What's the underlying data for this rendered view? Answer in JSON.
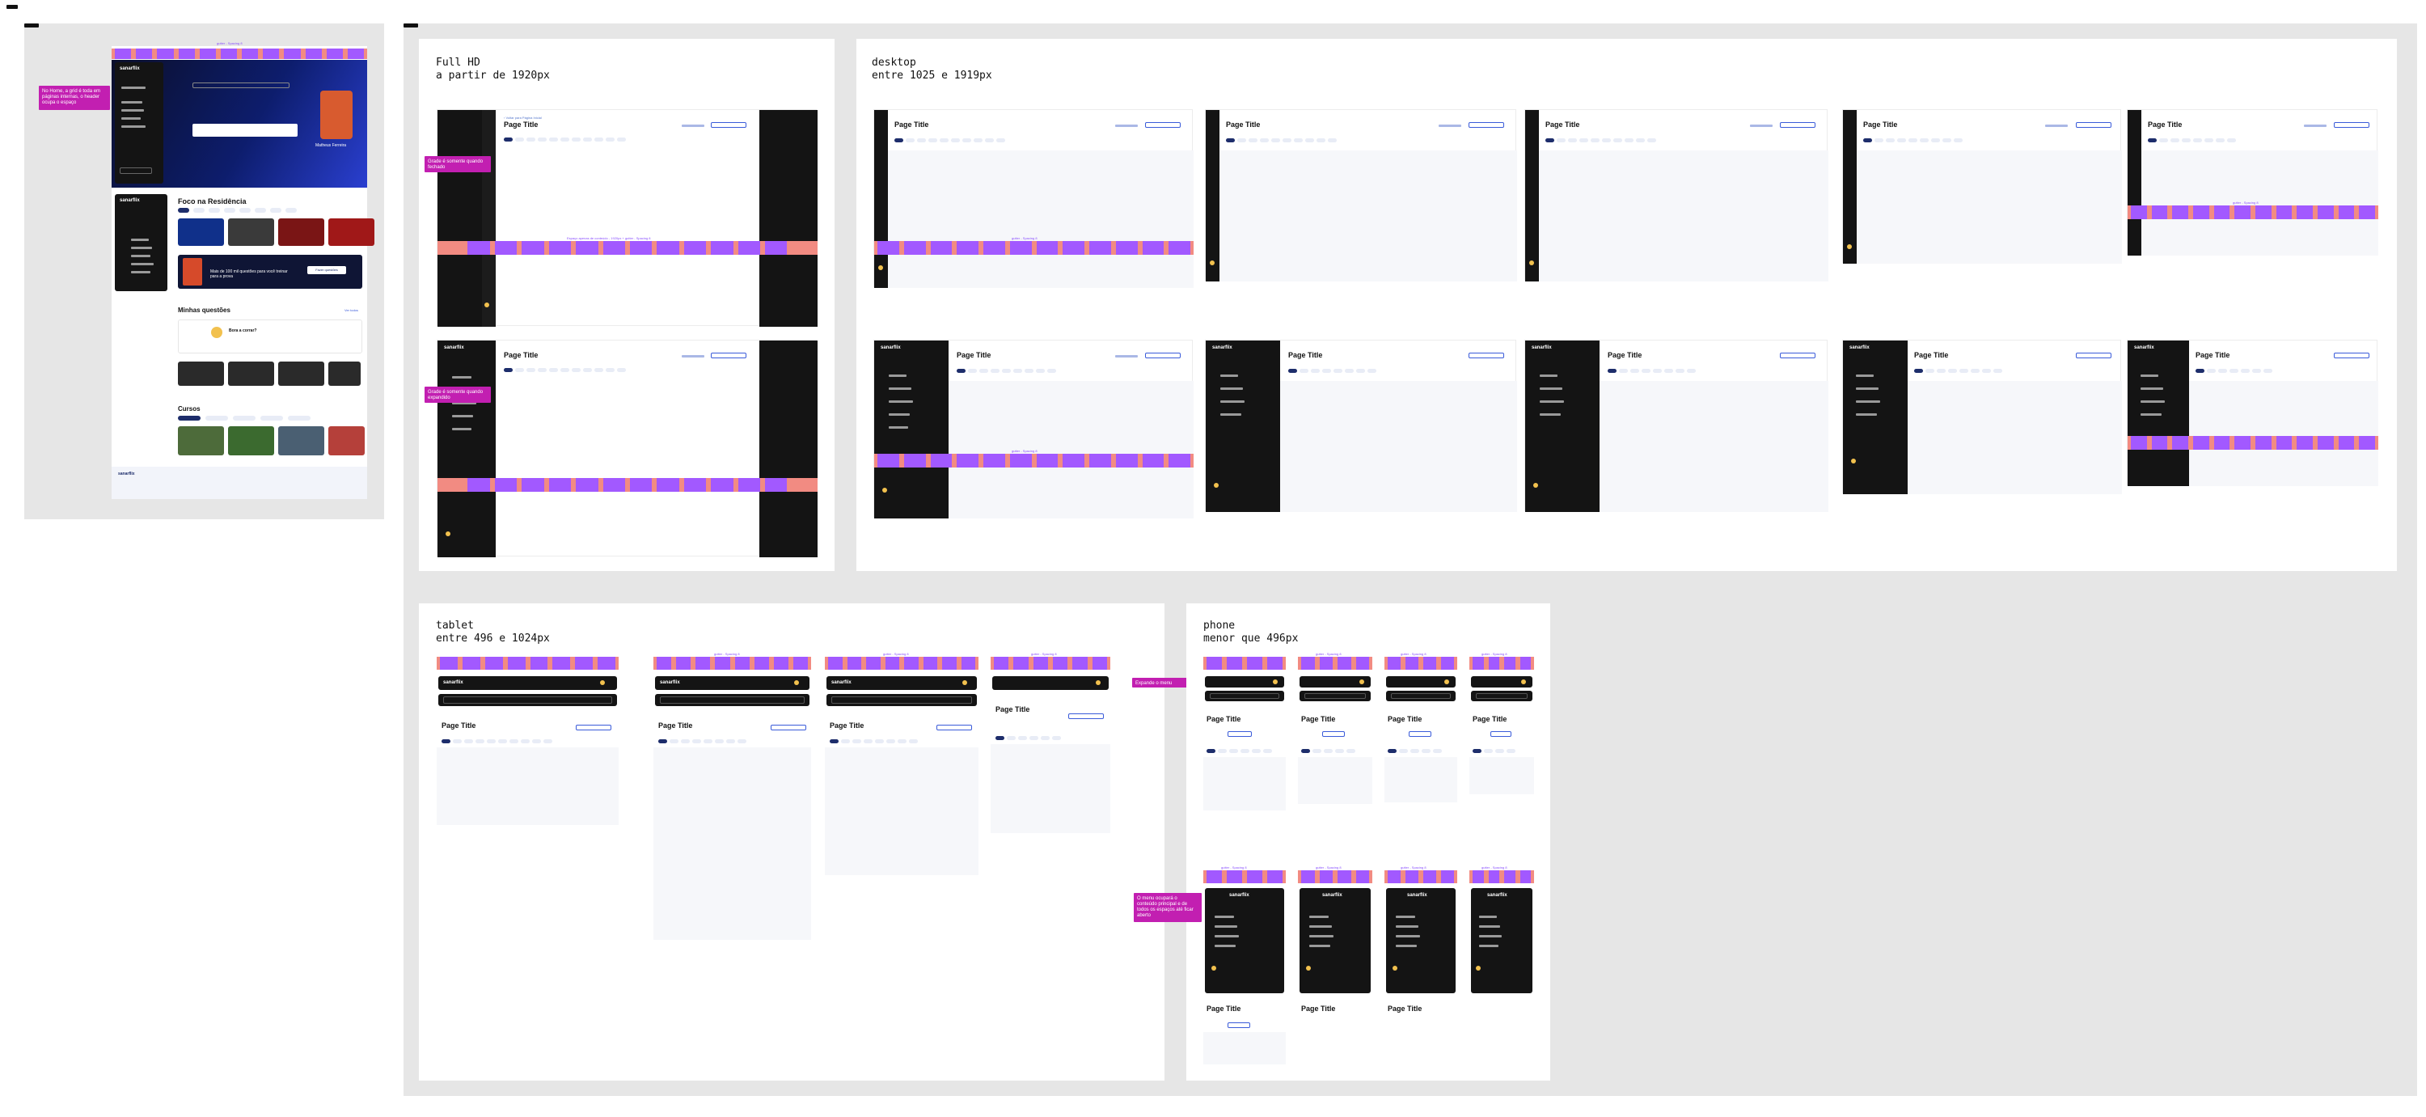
{
  "frames": {
    "full_hd": {
      "title": "Full HD\na partir de 1920px"
    },
    "desktop": {
      "title": "desktop\nentre 1025 e 1919px"
    },
    "tablet": {
      "title": "tablet\nentre 496 e 1024px"
    },
    "phone": {
      "title": "phone\nmenor que 496px"
    }
  },
  "mockup": {
    "logo": "sanarflix",
    "hero_name": "Matheus Ferreira",
    "section_foco": "Foco na Residência",
    "section_questoes": "Minhas questões",
    "section_cursos": "Cursos",
    "empty_title": "Bora a corrar?",
    "promo_title": "Mais de 100 mil questões para você treinar para a prova",
    "promo_button": "Fazer questões",
    "see_all": "Ver todos"
  },
  "device": {
    "page_title": "Page Title",
    "gutter_label": "gutter - Spacing 8",
    "gutter_label_fullhd": "Espaço apenas de conteúdo - 1920px + gutter - Spacing 8"
  },
  "notes": {
    "left": "No Home, a grid é toda em páginas internas, o header ocupa o espaço",
    "fullhd_1": "Grade é somente quando fechado",
    "fullhd_2": "Grade é somente quando expandido",
    "tablet": "Expande o menu",
    "phone": "O menu ocupará o conteúdo principal e de todos os espaços até ficar aberto"
  },
  "colors": {
    "purple": "#a259ff",
    "salmon": "#f28b82",
    "dark": "#141414",
    "note": "#c21fb1",
    "accent": "#1d2d6b"
  }
}
